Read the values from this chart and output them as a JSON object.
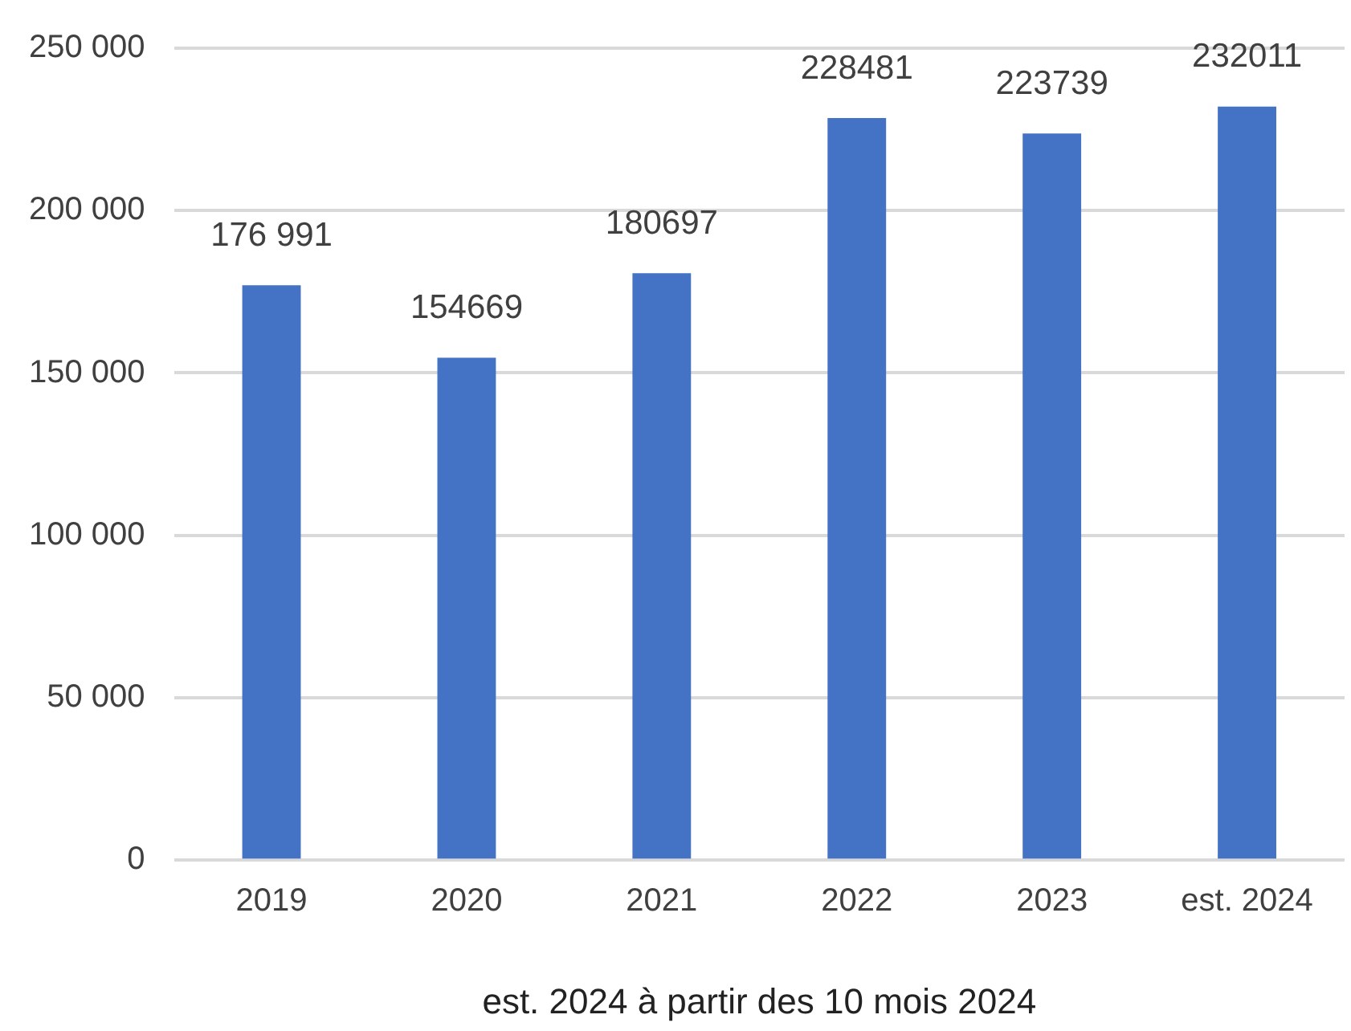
{
  "chart_data": {
    "type": "bar",
    "xlabel": "est. 2024 à partir des 10 mois 2024",
    "categories": [
      "2019",
      "2020",
      "2021",
      "2022",
      "2023",
      "est. 2024"
    ],
    "values": [
      176991,
      154669,
      180697,
      228481,
      223739,
      232011
    ],
    "value_labels": [
      "176 991",
      "154669",
      "180697",
      "228481",
      "223739",
      "232011"
    ],
    "color": "#4472c4",
    "ylim": [
      0,
      250000
    ],
    "yticks": [
      {
        "value": 0,
        "label": "0"
      },
      {
        "value": 50000,
        "label": "50 000"
      },
      {
        "value": 100000,
        "label": "100 000"
      },
      {
        "value": 150000,
        "label": "150 000"
      },
      {
        "value": 200000,
        "label": "200 000"
      },
      {
        "value": 250000,
        "label": "250 000"
      }
    ],
    "grid": "y",
    "legend": false
  }
}
